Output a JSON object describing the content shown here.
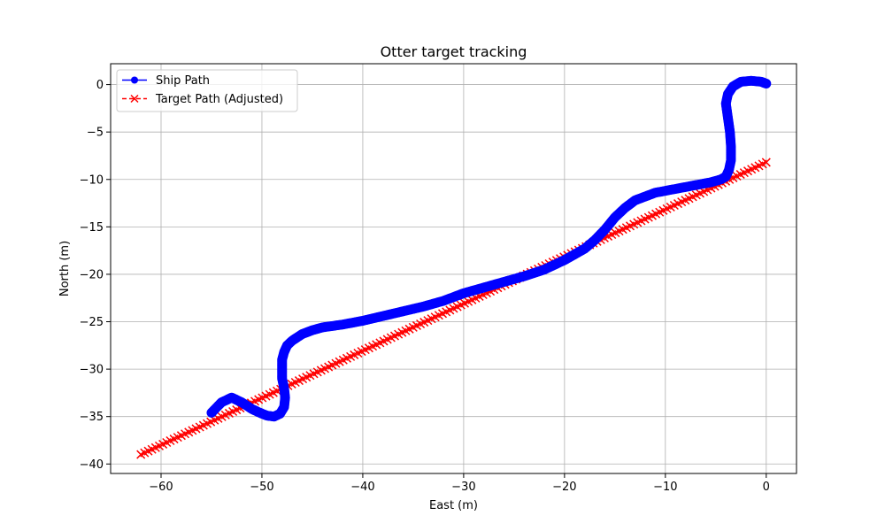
{
  "chart_data": {
    "type": "line",
    "title": "Otter target tracking",
    "xlabel": "East (m)",
    "ylabel": "North (m)",
    "xlim": [
      -65,
      3
    ],
    "ylim": [
      -41,
      2.2
    ],
    "xticks": [
      -60,
      -50,
      -40,
      -30,
      -20,
      -10,
      0
    ],
    "yticks": [
      0,
      -5,
      -10,
      -15,
      -20,
      -25,
      -30,
      -35,
      -40
    ],
    "xtick_labels": [
      "−60",
      "−50",
      "−40",
      "−30",
      "−20",
      "−10",
      "0"
    ],
    "ytick_labels": [
      "0",
      "−5",
      "−10",
      "−15",
      "−20",
      "−25",
      "−30",
      "−35",
      "−40"
    ],
    "grid": true,
    "legend_position": "upper-left",
    "series": [
      {
        "name": "Ship Path",
        "color": "#0000ff",
        "marker": "circle",
        "linestyle": "solid",
        "x": [
          0,
          -0.5,
          -1.5,
          -2.5,
          -3.3,
          -3.8,
          -4.0,
          -3.8,
          -3.6,
          -3.5,
          -3.5,
          -3.7,
          -4.0,
          -4.5,
          -5.5,
          -7,
          -9,
          -11,
          -13,
          -14,
          -15,
          -16,
          -17,
          -18,
          -19,
          -20,
          -22,
          -24,
          -26,
          -28,
          -30,
          -32,
          -34,
          -36,
          -38,
          -40,
          -42,
          -44,
          -45,
          -46,
          -47,
          -47.5,
          -47.8,
          -48.0,
          -48.0,
          -48.0,
          -47.8,
          -47.7,
          -47.8,
          -48.2,
          -48.8,
          -49.5,
          -50.2,
          -51,
          -52,
          -53,
          -54,
          -55
        ],
        "y": [
          0.1,
          0.3,
          0.4,
          0.3,
          -0.2,
          -1.0,
          -2.0,
          -3.5,
          -5.0,
          -6.5,
          -8.0,
          -9.0,
          -9.7,
          -10.0,
          -10.3,
          -10.6,
          -11.0,
          -11.4,
          -12.2,
          -13.0,
          -14.0,
          -15.3,
          -16.4,
          -17.3,
          -17.9,
          -18.5,
          -19.5,
          -20.2,
          -20.8,
          -21.4,
          -22.0,
          -22.8,
          -23.4,
          -23.9,
          -24.4,
          -24.9,
          -25.3,
          -25.6,
          -25.9,
          -26.3,
          -27.0,
          -27.5,
          -28.2,
          -29.0,
          -30.0,
          -31.0,
          -32.0,
          -33.0,
          -34.0,
          -34.7,
          -35.0,
          -34.9,
          -34.6,
          -34.2,
          -33.5,
          -33.0,
          -33.5,
          -34.6
        ]
      },
      {
        "name": "Target Path (Adjusted)",
        "color": "#ff0000",
        "marker": "x",
        "linestyle": "dashed",
        "x": [
          0,
          -62
        ],
        "y": [
          -8.2,
          -39.0
        ]
      }
    ]
  }
}
